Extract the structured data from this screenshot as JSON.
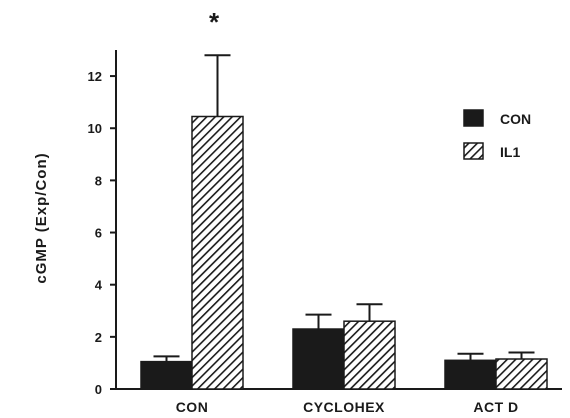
{
  "chart_data": {
    "type": "bar",
    "categories": [
      "CON",
      "CYCLOHEX",
      "ACT  D"
    ],
    "series": [
      {
        "name": "CON",
        "values": [
          1.05,
          2.3,
          1.1
        ],
        "errors": [
          0.2,
          0.55,
          0.25
        ],
        "fill": "solid"
      },
      {
        "name": "IL1",
        "values": [
          10.45,
          2.6,
          1.15
        ],
        "errors": [
          2.35,
          0.65,
          0.25
        ],
        "fill": "hatched"
      }
    ],
    "xlabel": "",
    "ylabel": "cGMP   (Exp/Con)",
    "ylim": [
      0,
      13
    ],
    "yticks": [
      "0",
      "2",
      "4",
      "6",
      "8",
      "10",
      "12"
    ],
    "annotation": "*",
    "legend_position": "right",
    "grid": false,
    "colors": {
      "bar": "#1a1a1a",
      "background": "#ffffff"
    }
  }
}
